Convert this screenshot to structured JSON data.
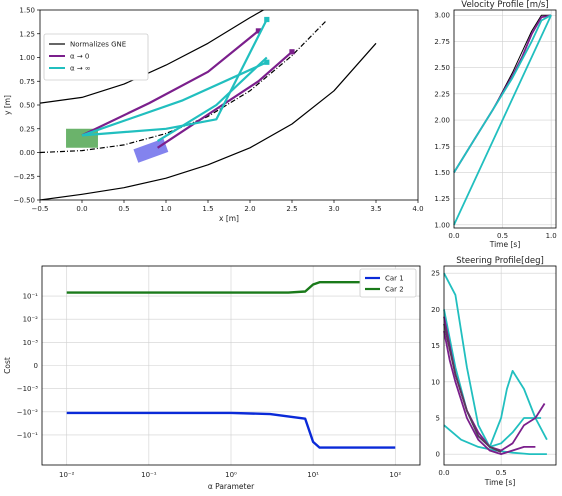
{
  "chart_data": [
    {
      "id": "traj",
      "type": "line",
      "title": "",
      "xlabel": "x [m]",
      "ylabel": "y [m]",
      "xlim": [
        -0.5,
        4.0
      ],
      "ylim": [
        -0.5,
        1.5
      ],
      "xticks": [
        -0.5,
        0.0,
        0.5,
        1.0,
        1.5,
        2.0,
        2.5,
        3.0,
        3.5,
        4.0
      ],
      "xtick_labels": [
        "−0.5",
        "0.0",
        "0.5",
        "1.0",
        "1.5",
        "2.0",
        "2.5",
        "3.0",
        "3.5",
        "4.0"
      ],
      "yticks": [
        -0.5,
        -0.25,
        0.0,
        0.25,
        0.5,
        0.75,
        1.0,
        1.25,
        1.5
      ],
      "ytick_labels": [
        "−0.50",
        "−0.25",
        "0.00",
        "0.25",
        "0.50",
        "0.75",
        "1.00",
        "1.25",
        "1.50"
      ],
      "grid": false,
      "legend": "top-left",
      "series": [
        {
          "name": "Normalizes GNE",
          "color": "#000000",
          "style": "solid",
          "x": [
            -0.5,
            0.0,
            0.5,
            1.0,
            1.5,
            2.0,
            2.2
          ],
          "y": [
            0.52,
            0.58,
            0.72,
            0.92,
            1.15,
            1.42,
            1.52
          ]
        },
        {
          "name": "",
          "color": "#000000",
          "style": "solid",
          "x": [
            -0.5,
            0.0,
            0.5,
            1.0,
            1.5,
            2.0,
            2.5,
            3.0,
            3.5
          ],
          "y": [
            -0.5,
            -0.44,
            -0.37,
            -0.27,
            -0.13,
            0.05,
            0.3,
            0.65,
            1.15
          ]
        },
        {
          "name": "",
          "color": "#000000",
          "style": "dashdot",
          "x": [
            -0.5,
            0.0,
            0.5,
            1.0,
            1.5,
            2.0,
            2.5,
            2.9
          ],
          "y": [
            0.0,
            0.02,
            0.08,
            0.2,
            0.38,
            0.65,
            1.02,
            1.38
          ]
        },
        {
          "name": "α → 0",
          "color": "#7b1f8c",
          "style": "solid",
          "x": [
            0.0,
            0.8,
            1.5,
            2.1
          ],
          "y": [
            0.18,
            0.52,
            0.85,
            1.28
          ],
          "end_marker": "square"
        },
        {
          "name": "",
          "color": "#7b1f8c",
          "style": "solid",
          "x": [
            0.9,
            1.5,
            2.1,
            2.5
          ],
          "y": [
            0.05,
            0.4,
            0.75,
            1.06
          ],
          "end_marker": "square"
        },
        {
          "name": "α → ∞",
          "color": "#21bfbf",
          "style": "solid",
          "x": [
            0.0,
            1.0,
            1.6,
            2.2
          ],
          "y": [
            0.18,
            0.25,
            0.35,
            1.4
          ],
          "end_marker": "square"
        },
        {
          "name": "",
          "color": "#21bfbf",
          "style": "solid",
          "x": [
            0.0,
            1.2,
            2.2
          ],
          "y": [
            0.18,
            0.55,
            0.95
          ],
          "end_marker": "square"
        },
        {
          "name": "",
          "color": "#21bfbf",
          "style": "solid",
          "x": [
            0.9,
            1.6,
            2.2
          ],
          "y": [
            0.12,
            0.5,
            1.0
          ]
        }
      ],
      "boxes": [
        {
          "color": "#3a9a3a",
          "cx": 0.0,
          "cy": 0.15,
          "w": 0.38,
          "h": 0.2,
          "angle": 0
        },
        {
          "color": "#5a5ae8",
          "cx": 0.82,
          "cy": 0.02,
          "w": 0.38,
          "h": 0.15,
          "angle": 20
        }
      ]
    },
    {
      "id": "vel",
      "type": "line",
      "title": "Velocity Profile [m/s]",
      "xlabel": "Time [s]",
      "ylabel": "",
      "xlim": [
        0.0,
        1.05
      ],
      "ylim": [
        0.97,
        3.05
      ],
      "xticks": [
        0.0,
        0.5,
        1.0
      ],
      "xtick_labels": [
        "0.0",
        "0.5",
        "1.0"
      ],
      "yticks": [
        1.0,
        1.25,
        1.5,
        1.75,
        2.0,
        2.25,
        2.5,
        2.75,
        3.0
      ],
      "ytick_labels": [
        "1.00",
        "1.25",
        "1.50",
        "1.75",
        "2.00",
        "2.25",
        "2.50",
        "2.75",
        "3.00"
      ],
      "grid": true,
      "series": [
        {
          "color": "#000000",
          "x": [
            0.0,
            0.2,
            0.4,
            0.6,
            0.7,
            0.8,
            0.9,
            1.0
          ],
          "y": [
            1.5,
            1.8,
            2.1,
            2.45,
            2.65,
            2.85,
            3.0,
            3.0
          ]
        },
        {
          "color": "#7b1f8c",
          "x": [
            0.0,
            0.2,
            0.4,
            0.6,
            0.7,
            0.8,
            0.9,
            1.0
          ],
          "y": [
            1.5,
            1.8,
            2.1,
            2.42,
            2.6,
            2.82,
            2.98,
            3.0
          ]
        },
        {
          "color": "#21bfbf",
          "x": [
            0.0,
            0.2,
            0.4,
            0.6,
            0.8,
            0.9,
            1.0
          ],
          "y": [
            1.5,
            1.8,
            2.1,
            2.4,
            2.75,
            2.95,
            3.0
          ]
        },
        {
          "color": "#21bfbf",
          "x": [
            0.0,
            1.0
          ],
          "y": [
            1.0,
            3.0
          ]
        }
      ]
    },
    {
      "id": "cost",
      "type": "line",
      "title": "",
      "xlabel": "α Parameter",
      "ylabel": "Cost",
      "xlim": [
        0.005,
        200
      ],
      "x_scale": "log",
      "y_scale": "symlog",
      "ylim_row": [
        -4.3,
        4.3
      ],
      "xticks": [
        0.01,
        0.1,
        1,
        10,
        100
      ],
      "xtick_labels": [
        "10⁻²",
        "10⁻¹",
        "10⁰",
        "10¹",
        "10²"
      ],
      "ytick_labels": [
        "10⁻¹",
        "10⁻²",
        "10⁻³",
        "0",
        "−10⁻³",
        "−10⁻²",
        "−10⁻¹"
      ],
      "ytick_rows": [
        3,
        2,
        1,
        0,
        -1,
        -2,
        -3
      ],
      "grid": true,
      "legend": "top-right",
      "series": [
        {
          "name": "Car 1",
          "color": "#0a2ad8",
          "x": [
            0.01,
            0.1,
            1,
            3,
            8,
            10,
            12,
            30,
            100
          ],
          "y_row": [
            -2.05,
            -2.05,
            -2.05,
            -2.1,
            -2.3,
            -3.3,
            -3.55,
            -3.55,
            -3.55
          ]
        },
        {
          "name": "Car 2",
          "color": "#1a7a1a",
          "x": [
            0.01,
            0.1,
            1,
            5,
            8,
            10,
            12,
            30,
            100
          ],
          "y_row": [
            3.15,
            3.15,
            3.15,
            3.15,
            3.2,
            3.5,
            3.6,
            3.6,
            3.6
          ]
        }
      ]
    },
    {
      "id": "steer",
      "type": "line",
      "title": "Steering Profile[deg]",
      "xlabel": "Time [s]",
      "ylabel": "",
      "xlim": [
        0.0,
        0.98
      ],
      "ylim": [
        -1.5,
        26
      ],
      "xticks": [
        0.0,
        0.5
      ],
      "xtick_labels": [
        "0.0",
        "0.5"
      ],
      "yticks": [
        0,
        5,
        10,
        15,
        20,
        25
      ],
      "ytick_labels": [
        "0",
        "5",
        "10",
        "15",
        "20",
        "25"
      ],
      "grid": true,
      "series": [
        {
          "color": "#21bfbf",
          "x": [
            0.0,
            0.1,
            0.2,
            0.3,
            0.4,
            0.5,
            0.55,
            0.6,
            0.7,
            0.8,
            0.9
          ],
          "y": [
            25,
            22,
            12,
            4,
            1,
            5,
            9,
            11.5,
            9,
            5,
            2
          ]
        },
        {
          "color": "#21bfbf",
          "x": [
            0.0,
            0.1,
            0.2,
            0.3,
            0.4,
            0.5,
            0.6,
            0.7,
            0.85
          ],
          "y": [
            20,
            12,
            6,
            2.5,
            1,
            1.5,
            3,
            5,
            5
          ]
        },
        {
          "color": "#21bfbf",
          "x": [
            0.0,
            0.15,
            0.3,
            0.45,
            0.6,
            0.75,
            0.9
          ],
          "y": [
            4,
            2,
            1,
            0.5,
            0.2,
            0,
            0
          ]
        },
        {
          "color": "#7b1f8c",
          "x": [
            0.0,
            0.05,
            0.1,
            0.2,
            0.3,
            0.4,
            0.5,
            0.6,
            0.7,
            0.8,
            0.88
          ],
          "y": [
            19,
            15,
            11,
            6,
            3,
            1,
            0.5,
            1.5,
            4,
            5,
            7
          ]
        },
        {
          "color": "#7b1f8c",
          "x": [
            0.0,
            0.05,
            0.1,
            0.2,
            0.3,
            0.4,
            0.5,
            0.6,
            0.7,
            0.8
          ],
          "y": [
            17,
            13,
            10,
            5,
            2,
            0.5,
            0,
            0.5,
            1,
            1
          ]
        },
        {
          "color": "#5a3a5a",
          "x": [
            0.0,
            0.1,
            0.2,
            0.3,
            0.4,
            0.5
          ],
          "y": [
            18,
            11,
            6,
            2.5,
            1,
            0.3
          ]
        }
      ]
    }
  ]
}
